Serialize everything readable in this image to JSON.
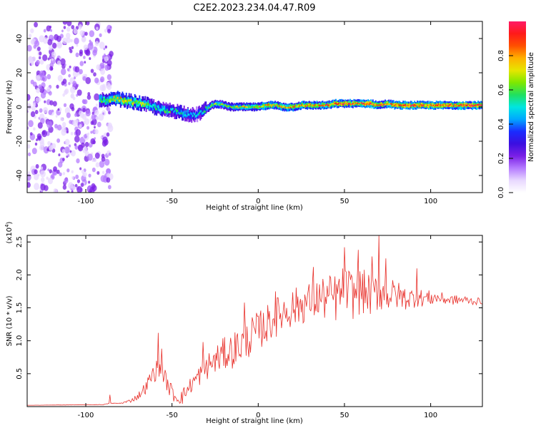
{
  "title": "C2E2.2023.234.04.47.R09",
  "colors": {
    "snr_line": "#e8302a",
    "axis": "#000000"
  },
  "chart_data": [
    {
      "type": "heatmap",
      "name": "spectrogram",
      "xlabel": "Height of straight line (km)",
      "ylabel": "Frequency (Hz)",
      "xlim": [
        -134,
        130
      ],
      "ylim": [
        -50,
        50
      ],
      "xticks": [
        -100,
        -50,
        0,
        50,
        100
      ],
      "xtick_labels": [
        "-100",
        "-50",
        "0",
        "50",
        "100"
      ],
      "yticks": [
        -40,
        -20,
        0,
        20,
        40
      ],
      "ytick_labels": [
        "-40",
        "-20",
        "0",
        "20",
        "40"
      ],
      "noise_region_x": [
        -134,
        -85
      ],
      "track": [
        [
          -134,
          0,
          0.15
        ],
        [
          -120,
          2,
          0.2
        ],
        [
          -100,
          6,
          0.3
        ],
        [
          -93,
          5,
          0.55
        ],
        [
          -88,
          3,
          0.65
        ],
        [
          -83,
          5,
          0.7
        ],
        [
          -78,
          4,
          0.75
        ],
        [
          -73,
          3,
          0.7
        ],
        [
          -68,
          2,
          0.7
        ],
        [
          -63,
          1,
          0.6
        ],
        [
          -58,
          -1,
          0.55
        ],
        [
          -54,
          -2,
          0.6
        ],
        [
          -50,
          -2,
          0.5
        ],
        [
          -45,
          -3,
          0.55
        ],
        [
          -41,
          -4,
          0.5
        ],
        [
          -37,
          -5,
          0.45
        ],
        [
          -33,
          -3,
          0.5
        ],
        [
          -30,
          -1,
          0.55
        ],
        [
          -27,
          1,
          0.6
        ],
        [
          -24,
          2,
          0.65
        ],
        [
          -20,
          1,
          0.65
        ],
        [
          -16,
          0,
          0.6
        ],
        [
          -12,
          0,
          0.7
        ],
        [
          -8,
          0,
          0.75
        ],
        [
          -4,
          0,
          0.7
        ],
        [
          0,
          0,
          0.75
        ],
        [
          5,
          1,
          0.8
        ],
        [
          10,
          1,
          0.75
        ],
        [
          15,
          0,
          0.8
        ],
        [
          20,
          0,
          0.8
        ],
        [
          25,
          1,
          0.85
        ],
        [
          30,
          1,
          0.8
        ],
        [
          35,
          1,
          0.8
        ],
        [
          40,
          1,
          0.85
        ],
        [
          45,
          2,
          0.85
        ],
        [
          50,
          2,
          0.9
        ],
        [
          55,
          2,
          0.85
        ],
        [
          60,
          2,
          0.9
        ],
        [
          65,
          2,
          0.9
        ],
        [
          70,
          1,
          0.9
        ],
        [
          75,
          2,
          0.85
        ],
        [
          80,
          1,
          0.9
        ],
        [
          85,
          1,
          0.9
        ],
        [
          90,
          1,
          0.9
        ],
        [
          95,
          1,
          0.9
        ],
        [
          100,
          1,
          0.9
        ],
        [
          105,
          1,
          0.9
        ],
        [
          110,
          1,
          0.9
        ],
        [
          115,
          1,
          0.9
        ],
        [
          120,
          1,
          0.95
        ],
        [
          125,
          1,
          0.95
        ],
        [
          130,
          1,
          0.95
        ]
      ]
    },
    {
      "type": "line",
      "name": "snr",
      "xlabel": "Height of straight line (km)",
      "ylabel": "SNR (10 * v/v)",
      "yscale_label": "(x10",
      "yscale_exp": "4",
      "xlim": [
        -134,
        130
      ],
      "ylim": [
        0,
        2.6
      ],
      "xticks": [
        -100,
        -50,
        0,
        50,
        100
      ],
      "xtick_labels": [
        "-100",
        "-50",
        "0",
        "50",
        "100"
      ],
      "yticks": [
        0.5,
        1.0,
        1.5,
        2.0,
        2.5
      ],
      "ytick_labels": [
        "0.5",
        "1.0",
        "1.5",
        "2.0",
        "2.5"
      ],
      "envelope": {
        "x": [
          -134,
          -90,
          -86,
          -80,
          -75,
          -70,
          -65,
          -62,
          -58,
          -55,
          -52,
          -48,
          -44,
          -40,
          -35,
          -30,
          -25,
          -20,
          -15,
          -10,
          -5,
          0,
          5,
          10,
          15,
          20,
          25,
          30,
          35,
          40,
          45,
          50,
          55,
          60,
          65,
          70,
          75,
          80,
          85,
          90,
          95,
          100,
          105,
          110,
          115,
          120,
          125,
          130
        ],
        "y": [
          0.02,
          0.03,
          0.05,
          0.05,
          0.08,
          0.15,
          0.3,
          0.45,
          0.6,
          0.5,
          0.3,
          0.15,
          0.15,
          0.3,
          0.45,
          0.6,
          0.7,
          0.8,
          0.85,
          0.95,
          1.05,
          1.15,
          1.25,
          1.35,
          1.45,
          1.5,
          1.55,
          1.6,
          1.65,
          1.65,
          1.65,
          1.75,
          1.7,
          1.75,
          1.7,
          1.75,
          1.7,
          1.7,
          1.65,
          1.65,
          1.65,
          1.65,
          1.65,
          1.62,
          1.62,
          1.62,
          1.6,
          1.6
        ]
      },
      "noise": {
        "x": [
          -134,
          -80,
          -70,
          -60,
          -50,
          -40,
          -30,
          -20,
          -10,
          0,
          10,
          30,
          50,
          70,
          90,
          110,
          130
        ],
        "y": [
          0.0,
          0.005,
          0.05,
          0.15,
          0.12,
          0.12,
          0.2,
          0.25,
          0.3,
          0.3,
          0.3,
          0.3,
          0.4,
          0.3,
          0.15,
          0.08,
          0.05
        ]
      },
      "peaks": [
        {
          "x": -86,
          "y": 0.18
        },
        {
          "x": -58,
          "y": 1.12
        },
        {
          "x": -56,
          "y": 0.88
        },
        {
          "x": -32,
          "y": 0.98
        },
        {
          "x": -8,
          "y": 1.58
        },
        {
          "x": 10,
          "y": 1.75
        },
        {
          "x": 32,
          "y": 2.12
        },
        {
          "x": 50,
          "y": 2.42
        },
        {
          "x": 58,
          "y": 2.38
        },
        {
          "x": 66,
          "y": 2.28
        },
        {
          "x": 70,
          "y": 2.6
        },
        {
          "x": 74,
          "y": 2.25
        },
        {
          "x": 92,
          "y": 2.1
        }
      ]
    }
  ],
  "colorbar": {
    "label": "Normalized spectral amplitude",
    "ticks": [
      0.0,
      0.2,
      0.4,
      0.6,
      0.8
    ],
    "tick_labels": [
      "0.0",
      "0.2",
      "0.4",
      "0.6",
      "0.8"
    ],
    "colormap": [
      "#ffffff",
      "#e8d8ff",
      "#b57bff",
      "#7a1fe6",
      "#3b0fe0",
      "#1a2cff",
      "#00a8ff",
      "#00e6e0",
      "#20e060",
      "#7fe800",
      "#e6e600",
      "#ffb000",
      "#ff5000",
      "#ff1a1a",
      "#ff1a66"
    ]
  }
}
